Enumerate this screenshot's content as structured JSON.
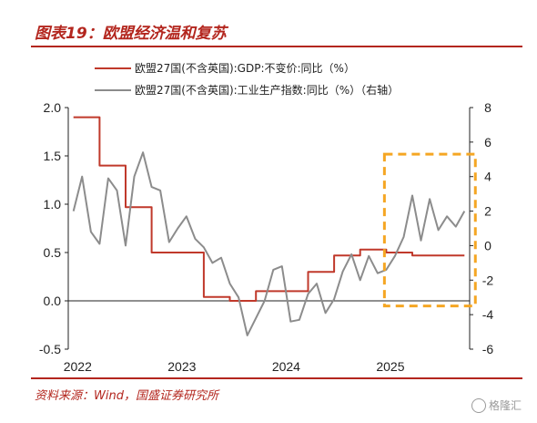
{
  "title": "图表19：欧盟经济温和复苏",
  "source": "资料来源：Wind，国盛证券研究所",
  "watermark": "格隆汇",
  "chart_data": {
    "type": "line",
    "x_tick_labels": [
      "2022",
      "2023",
      "2024",
      "2025"
    ],
    "y_left": {
      "ticks": [
        "2.0",
        "1.5",
        "1.0",
        "0.5",
        "0.0",
        "-0.5"
      ],
      "ylim": [
        -0.5,
        2.0
      ]
    },
    "y_right": {
      "ticks": [
        "8",
        "6",
        "4",
        "2",
        "0",
        "-2",
        "-4",
        "-6"
      ],
      "ylim": [
        -6,
        8
      ]
    },
    "series": [
      {
        "name": "欧盟27国(不含英国):GDP:不变价:同比（%）",
        "axis": "left",
        "color": "#c0392b",
        "kind": "step",
        "x": [
          2022.0,
          2022.25,
          2022.5,
          2022.75,
          2023.0,
          2023.25,
          2023.5,
          2023.75,
          2024.0,
          2024.25,
          2024.5,
          2024.75,
          2025.0,
          2025.25,
          2025.5
        ],
        "values": [
          1.9,
          1.4,
          0.97,
          0.5,
          0.5,
          0.04,
          0.0,
          0.1,
          0.1,
          0.3,
          0.47,
          0.53,
          0.5,
          0.47,
          0.47
        ]
      },
      {
        "name": "欧盟27国(不含英国):工业生产指数:同比（%）（右轴）",
        "axis": "right",
        "color": "#8c8c8c",
        "kind": "line",
        "x": [
          2022.0,
          2022.083,
          2022.167,
          2022.25,
          2022.333,
          2022.417,
          2022.5,
          2022.583,
          2022.667,
          2022.75,
          2022.833,
          2022.917,
          2023.0,
          2023.083,
          2023.167,
          2023.25,
          2023.333,
          2023.417,
          2023.5,
          2023.583,
          2023.667,
          2023.75,
          2023.833,
          2023.917,
          2024.0,
          2024.083,
          2024.167,
          2024.25,
          2024.333,
          2024.417,
          2024.5,
          2024.583,
          2024.667,
          2024.75,
          2024.833,
          2024.917,
          2025.0,
          2025.083,
          2025.167,
          2025.25,
          2025.333,
          2025.417,
          2025.5,
          2025.583,
          2025.667,
          2025.75
        ],
        "values": [
          2.0,
          4.0,
          0.8,
          0.1,
          3.9,
          3.2,
          0.0,
          4.0,
          5.4,
          3.4,
          3.2,
          0.2,
          1.0,
          1.7,
          0.4,
          -0.1,
          -1.0,
          -0.7,
          -2.2,
          -3.0,
          -5.2,
          -4.2,
          -3.2,
          -1.4,
          -1.2,
          -4.4,
          -4.3,
          -2.8,
          -2.2,
          -3.9,
          -3.1,
          -1.5,
          -0.5,
          -2.0,
          -0.6,
          -1.6,
          -1.4,
          -0.6,
          0.5,
          2.9,
          0.3,
          2.7,
          0.9,
          1.7,
          1.1,
          2.0
        ]
      }
    ],
    "annotation": {
      "kind": "dashed-rectangle",
      "color": "#f5a623",
      "x_range": [
        2025.0,
        2025.75
      ],
      "y_right_range": [
        -3.5,
        5.3
      ]
    }
  }
}
